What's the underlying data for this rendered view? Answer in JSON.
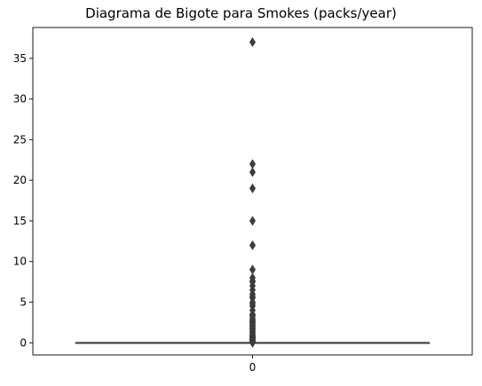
{
  "chart_data": {
    "type": "box",
    "title": "Diagrama de Bigote para Smokes (packs/year)",
    "xlabel": "",
    "ylabel": "",
    "categories": [
      "0"
    ],
    "ylim": [
      -1.5,
      38.8
    ],
    "yticks": [
      0,
      5,
      10,
      15,
      20,
      25,
      30,
      35
    ],
    "ytick_labels": [
      "0",
      "5",
      "10",
      "15",
      "20",
      "25",
      "30",
      "35"
    ],
    "grid": false,
    "legend": "none",
    "box": {
      "category": "0",
      "q1": 0,
      "median": 0,
      "q3": 0,
      "whisker_low": 0,
      "whisker_high": 0,
      "color": "#3d3d3d"
    },
    "outliers": [
      0.003,
      0.025,
      0.05,
      0.1,
      0.16,
      0.25,
      0.3,
      0.4,
      0.5,
      0.55,
      0.6,
      0.7,
      0.75,
      0.8,
      0.9,
      1,
      1.2,
      1.25,
      1.4,
      1.6,
      1.75,
      1.8,
      2,
      2.1,
      2.2,
      2.4,
      2.5,
      2.6,
      2.75,
      2.8,
      3,
      3.3,
      3.4,
      3.5,
      4,
      4.5,
      4.8,
      5,
      5.5,
      5.7,
      6,
      6.5,
      7,
      7.5,
      7.6,
      8,
      9,
      12,
      15,
      19,
      21,
      22,
      37
    ]
  }
}
